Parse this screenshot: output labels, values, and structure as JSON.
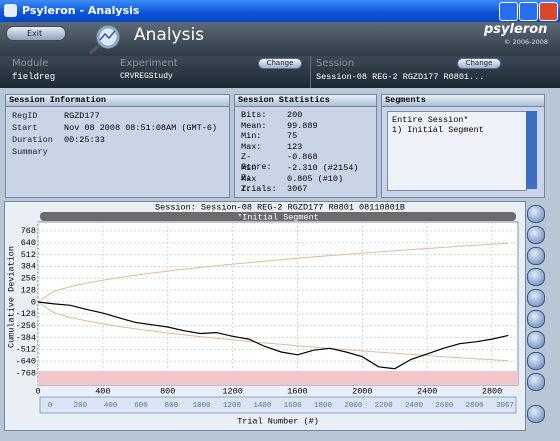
{
  "window": {
    "title": "Psyleron - Analysis"
  },
  "header": {
    "exit": "Exit",
    "title": "Analysis",
    "brand": "psyleron",
    "copyright": "© 2006-2008"
  },
  "selectors": [
    {
      "label": "Module",
      "value": "fieldreg"
    },
    {
      "label": "Experiment",
      "value": "CRVREGStudy",
      "button": "Change"
    },
    {
      "label": "Session",
      "value": "Session-08 REG-2 RGZD177 R0801...",
      "button": "Change"
    }
  ],
  "session_info": {
    "title": "Session Information",
    "rows": [
      [
        "RegID",
        "RGZD177"
      ],
      [
        "Start",
        "Nov 08 2008 08:51:08AM (GMT-6)"
      ],
      [
        "Duration",
        "00:25:33"
      ],
      [
        "Summary",
        ""
      ]
    ]
  },
  "session_stats": {
    "title": "Session Statistics",
    "rows": [
      [
        "Bits:",
        "200"
      ],
      [
        "Mean:",
        "99.889"
      ],
      [
        "Min:",
        "75"
      ],
      [
        "Max:",
        "123"
      ],
      [
        "Z-Score:",
        "-0.868"
      ],
      [
        "Min Z:",
        "-2.310 (#2154)"
      ],
      [
        "Max Z:",
        "0.805 (#10)"
      ],
      [
        "Trials:",
        "3067"
      ]
    ]
  },
  "segments": {
    "title": "Segments",
    "items": [
      "Entire Session*",
      "1) Initial Segment"
    ]
  },
  "chart_data": {
    "type": "line",
    "title": "Session: Session-08 REG-2 RGZD177 R0801 08110801B",
    "subtitle": "*Initial Segment",
    "x_label": "Trial Number (#)",
    "y_label": "Cumulative Deviation",
    "xlim": [
      0,
      2960
    ],
    "ylim": [
      -896,
      864
    ],
    "xticks": [
      0,
      400,
      800,
      1200,
      1600,
      2000,
      2400,
      2800
    ],
    "yticks": [
      768,
      640,
      512,
      384,
      256,
      128,
      0,
      -128,
      -256,
      -384,
      -512,
      -640,
      -768
    ],
    "grid": true,
    "x": [
      0,
      100,
      200,
      300,
      400,
      500,
      600,
      700,
      800,
      900,
      1000,
      1100,
      1200,
      1300,
      1400,
      1500,
      1600,
      1700,
      1800,
      1900,
      2000,
      2100,
      2200,
      2300,
      2400,
      2500,
      2600,
      2700,
      2800,
      2900
    ],
    "series": [
      {
        "color": "#000000",
        "values": [
          0,
          -20,
          -35,
          -80,
          -120,
          -170,
          -220,
          -245,
          -270,
          -310,
          -340,
          -330,
          -370,
          -400,
          -480,
          -540,
          -570,
          -520,
          -500,
          -540,
          -590,
          -700,
          -720,
          -620,
          -560,
          -500,
          -450,
          -430,
          -400,
          -360
        ]
      },
      {
        "color": "#e6b896",
        "values": [
          0,
          118,
          167,
          204,
          236,
          264,
          289,
          312,
          334,
          354,
          373,
          391,
          409,
          425,
          442,
          457,
          472,
          487,
          501,
          514,
          528,
          541,
          553,
          566,
          578,
          590,
          602,
          613,
          624,
          635
        ]
      },
      {
        "color": "#e6b896",
        "values": [
          0,
          -118,
          -167,
          -204,
          -236,
          -264,
          -289,
          -312,
          -334,
          -354,
          -373,
          -391,
          -409,
          -425,
          -442,
          -457,
          -472,
          -487,
          -501,
          -514,
          -528,
          -541,
          -553,
          -566,
          -578,
          -590,
          -602,
          -613,
          -624,
          -635
        ]
      }
    ],
    "ruler_labels": [
      "0",
      "200",
      "400",
      "600",
      "800",
      "1000",
      "1200",
      "1400",
      "1600",
      "1800",
      "2000",
      "2200",
      "2400",
      "2600",
      "2800",
      "3067"
    ]
  }
}
